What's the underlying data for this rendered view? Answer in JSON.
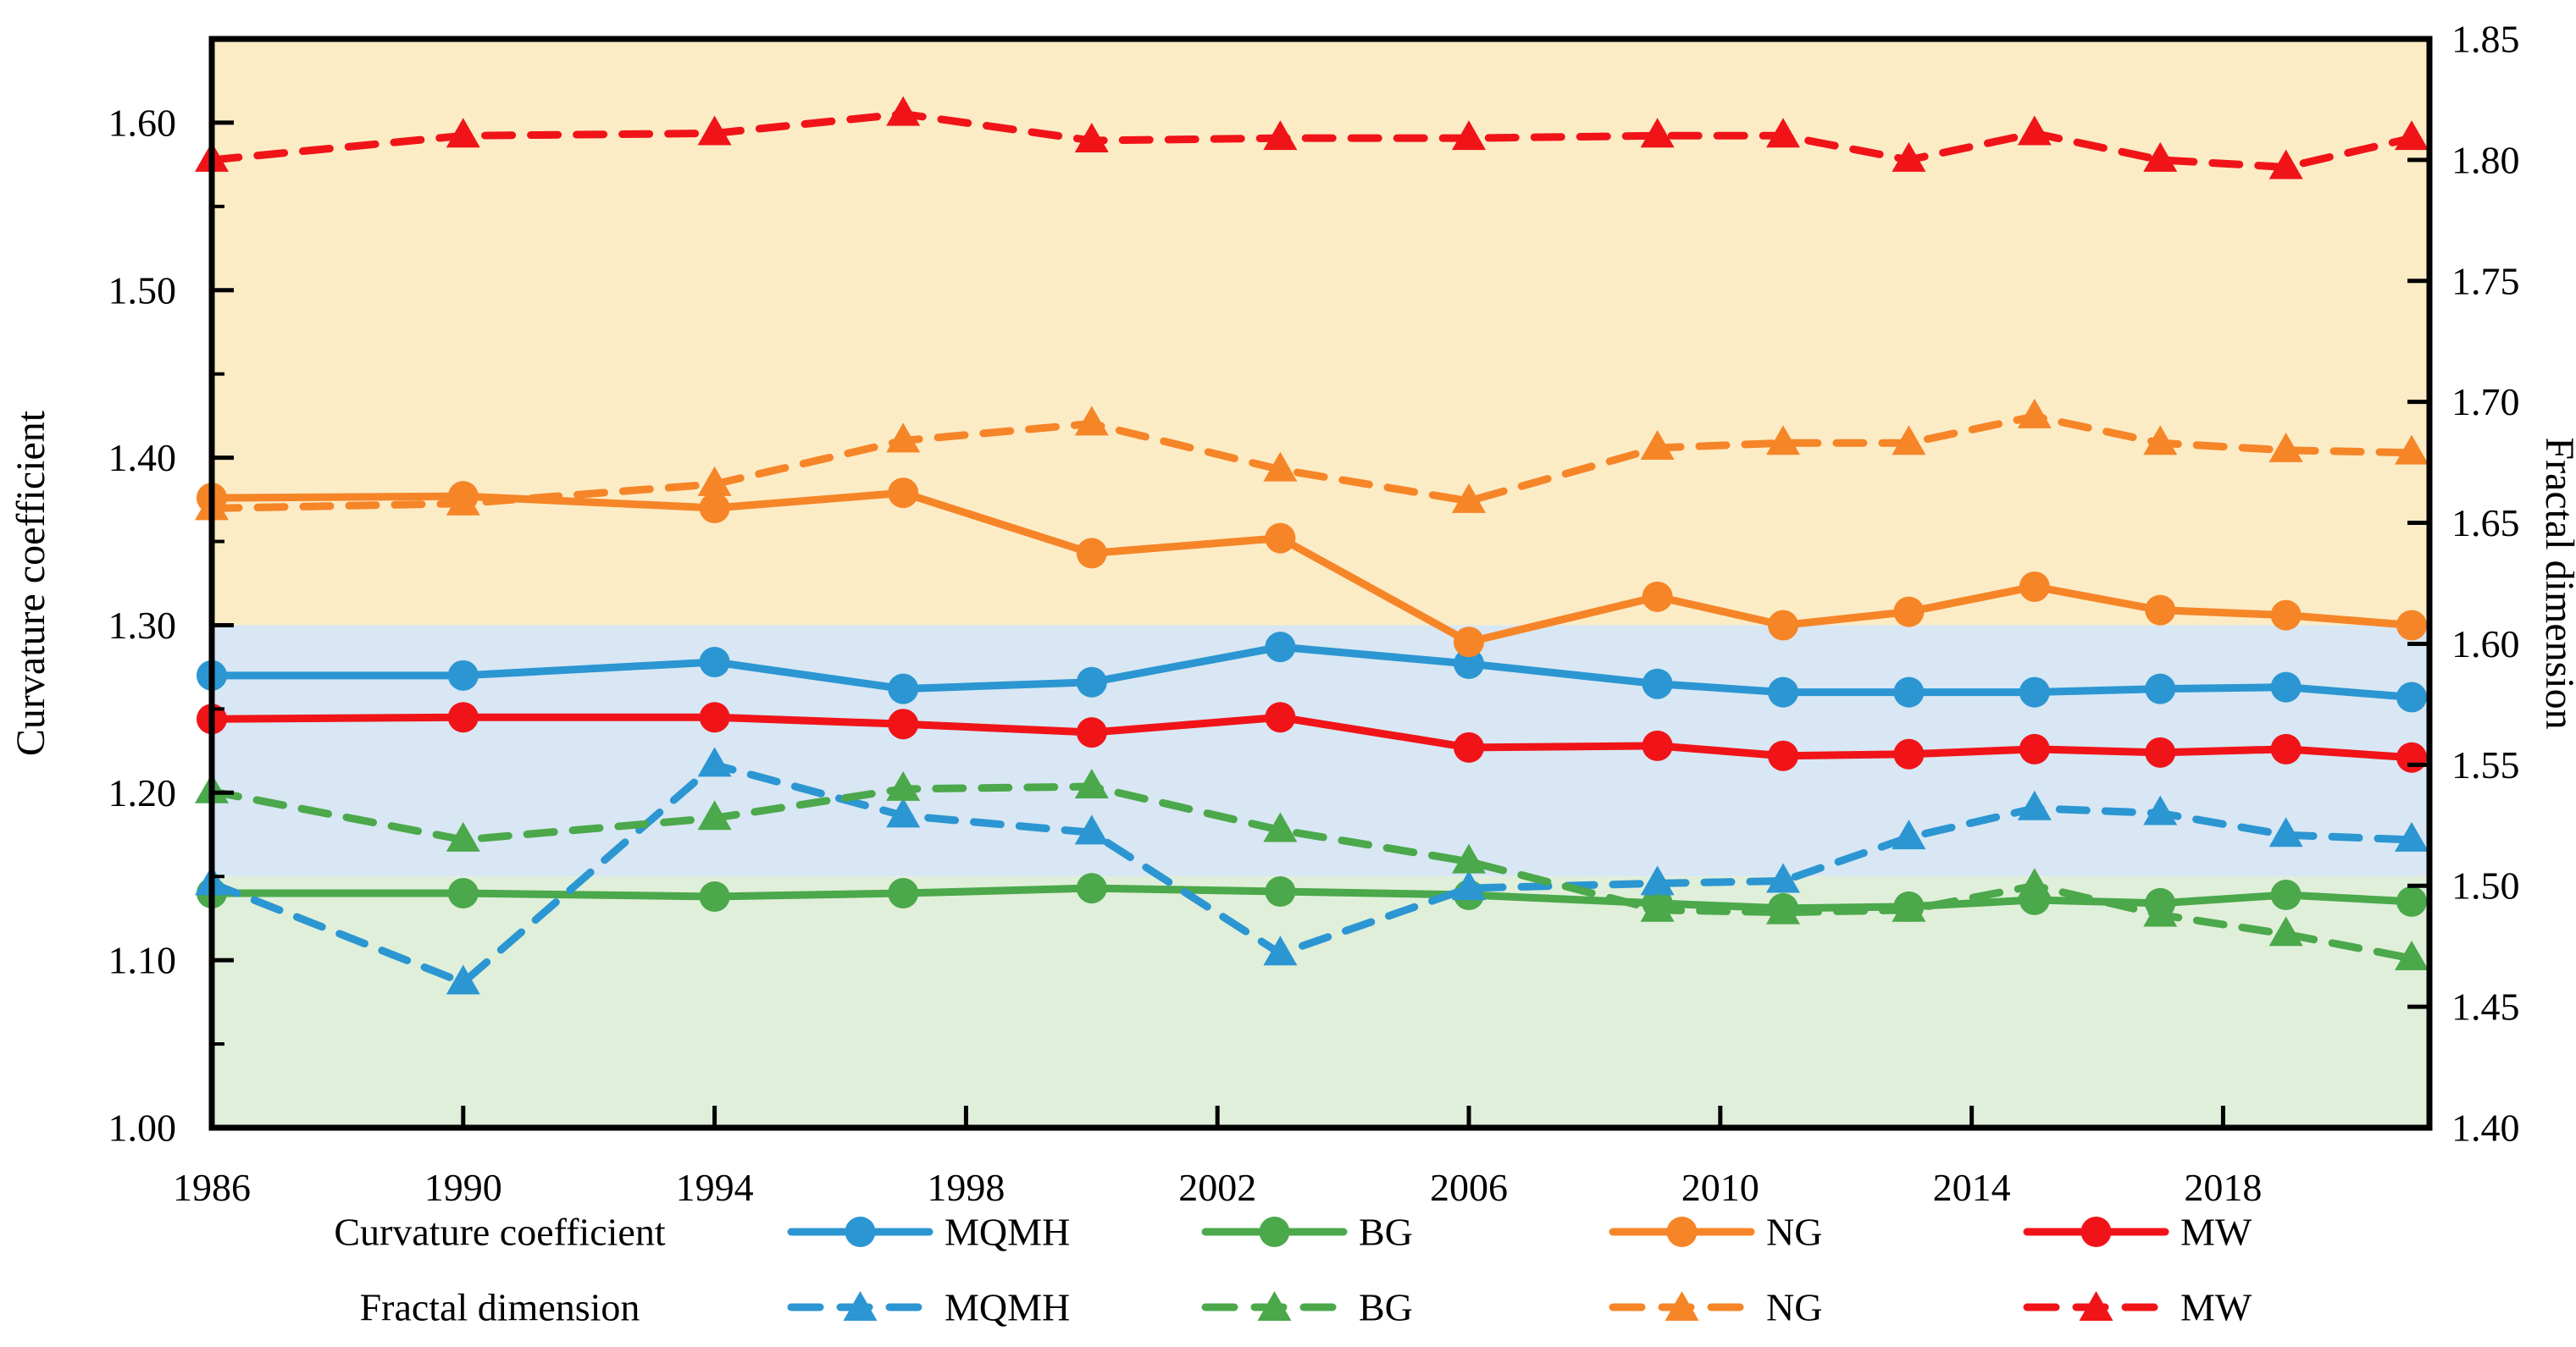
{
  "chart_data": {
    "type": "line",
    "title": "",
    "x_years": [
      1986,
      1990,
      1994,
      1997,
      2000,
      2003,
      2006,
      2009,
      2011,
      2013,
      2015,
      2017,
      2019,
      2021
    ],
    "x_tick_labels": [
      "1986",
      "1990",
      "1994",
      "1998",
      "2002",
      "2006",
      "2010",
      "2014",
      "2018"
    ],
    "x_tick_values": [
      1986,
      1990,
      1994,
      1998,
      2002,
      2006,
      2010,
      2014,
      2018
    ],
    "left_axis": {
      "label": "Curvature coefficient",
      "min": 1.0,
      "max": 1.65,
      "tick_values": [
        1.0,
        1.1,
        1.2,
        1.3,
        1.4,
        1.5,
        1.6
      ],
      "tick_labels": [
        "1.00",
        "1.10",
        "1.20",
        "1.30",
        "1.40",
        "1.50",
        "1.60"
      ],
      "minor_tick_values": [
        1.05,
        1.15,
        1.25,
        1.35,
        1.45,
        1.55,
        1.65
      ]
    },
    "right_axis": {
      "label": "Fractal dimension",
      "min": 1.4,
      "max": 1.85,
      "tick_values": [
        1.4,
        1.45,
        1.5,
        1.55,
        1.6,
        1.65,
        1.7,
        1.75,
        1.8,
        1.85
      ],
      "tick_labels": [
        "1.40",
        "1.45",
        "1.50",
        "1.55",
        "1.60",
        "1.65",
        "1.70",
        "1.75",
        "1.80",
        "1.85"
      ]
    },
    "bands": [
      {
        "name": "upper-band",
        "axis": "left",
        "from": 1.3,
        "to": 1.65,
        "color": "#FCECC6"
      },
      {
        "name": "middle-band",
        "axis": "left",
        "from": 1.15,
        "to": 1.3,
        "color": "#D8E7F3"
      },
      {
        "name": "lower-band",
        "axis": "left",
        "from": 1.0,
        "to": 1.15,
        "color": "#E0EFDA"
      }
    ],
    "series": [
      {
        "name": "MQMH",
        "group": "Curvature coefficient",
        "axis": "left",
        "style": "solid",
        "marker": "circle",
        "color": "#2B96D2",
        "values": [
          1.27,
          1.27,
          1.278,
          1.262,
          1.266,
          1.287,
          1.277,
          1.265,
          1.26,
          1.26,
          1.26,
          1.262,
          1.263,
          1.257
        ]
      },
      {
        "name": "BG",
        "group": "Curvature coefficient",
        "axis": "left",
        "style": "solid",
        "marker": "circle",
        "color": "#4BA84B",
        "values": [
          1.14,
          1.14,
          1.138,
          1.14,
          1.143,
          1.141,
          1.139,
          1.134,
          1.131,
          1.132,
          1.136,
          1.134,
          1.139,
          1.135
        ]
      },
      {
        "name": "NG",
        "group": "Curvature coefficient",
        "axis": "left",
        "style": "solid",
        "marker": "circle",
        "color": "#F68528",
        "values": [
          1.376,
          1.377,
          1.37,
          1.379,
          1.343,
          1.352,
          1.29,
          1.317,
          1.3,
          1.308,
          1.323,
          1.309,
          1.306,
          1.3
        ]
      },
      {
        "name": "MW",
        "group": "Curvature coefficient",
        "axis": "left",
        "style": "solid",
        "marker": "circle",
        "color": "#F01418",
        "values": [
          1.244,
          1.245,
          1.245,
          1.241,
          1.236,
          1.245,
          1.227,
          1.228,
          1.222,
          1.223,
          1.226,
          1.224,
          1.226,
          1.221
        ]
      },
      {
        "name": "MQMH",
        "group": "Fractal dimension",
        "axis": "right",
        "style": "dashed",
        "marker": "triangle",
        "color": "#2B96D2",
        "values": [
          1.501,
          1.46,
          1.55,
          1.529,
          1.522,
          1.472,
          1.499,
          1.501,
          1.502,
          1.52,
          1.532,
          1.53,
          1.521,
          1.519
        ]
      },
      {
        "name": "BG",
        "group": "Fractal dimension",
        "axis": "right",
        "style": "dashed",
        "marker": "triangle",
        "color": "#4BA84B",
        "values": [
          1.539,
          1.519,
          1.528,
          1.54,
          1.541,
          1.523,
          1.51,
          1.49,
          1.489,
          1.49,
          1.5,
          1.488,
          1.48,
          1.47
        ]
      },
      {
        "name": "NG",
        "group": "Fractal dimension",
        "axis": "right",
        "style": "dashed",
        "marker": "triangle",
        "color": "#F68528",
        "values": [
          1.656,
          1.658,
          1.666,
          1.684,
          1.691,
          1.672,
          1.659,
          1.681,
          1.683,
          1.683,
          1.694,
          1.683,
          1.68,
          1.679
        ]
      },
      {
        "name": "MW",
        "group": "Fractal dimension",
        "axis": "right",
        "style": "dashed",
        "marker": "triangle",
        "color": "#F01418",
        "values": [
          1.8,
          1.81,
          1.811,
          1.819,
          1.808,
          1.809,
          1.809,
          1.81,
          1.81,
          1.8,
          1.811,
          1.8,
          1.797,
          1.809
        ]
      }
    ],
    "legend": {
      "rows": [
        {
          "group_label": "Curvature coefficient",
          "style": "solid",
          "marker": "circle",
          "items": [
            "MQMH",
            "BG",
            "NG",
            "MW"
          ]
        },
        {
          "group_label": "Fractal dimension",
          "style": "dashed",
          "marker": "triangle",
          "items": [
            "MQMH",
            "BG",
            "NG",
            "MW"
          ]
        }
      ]
    },
    "layout_hints": {
      "grid": "off",
      "legend_position": "bottom",
      "background": "#ffffff"
    }
  }
}
